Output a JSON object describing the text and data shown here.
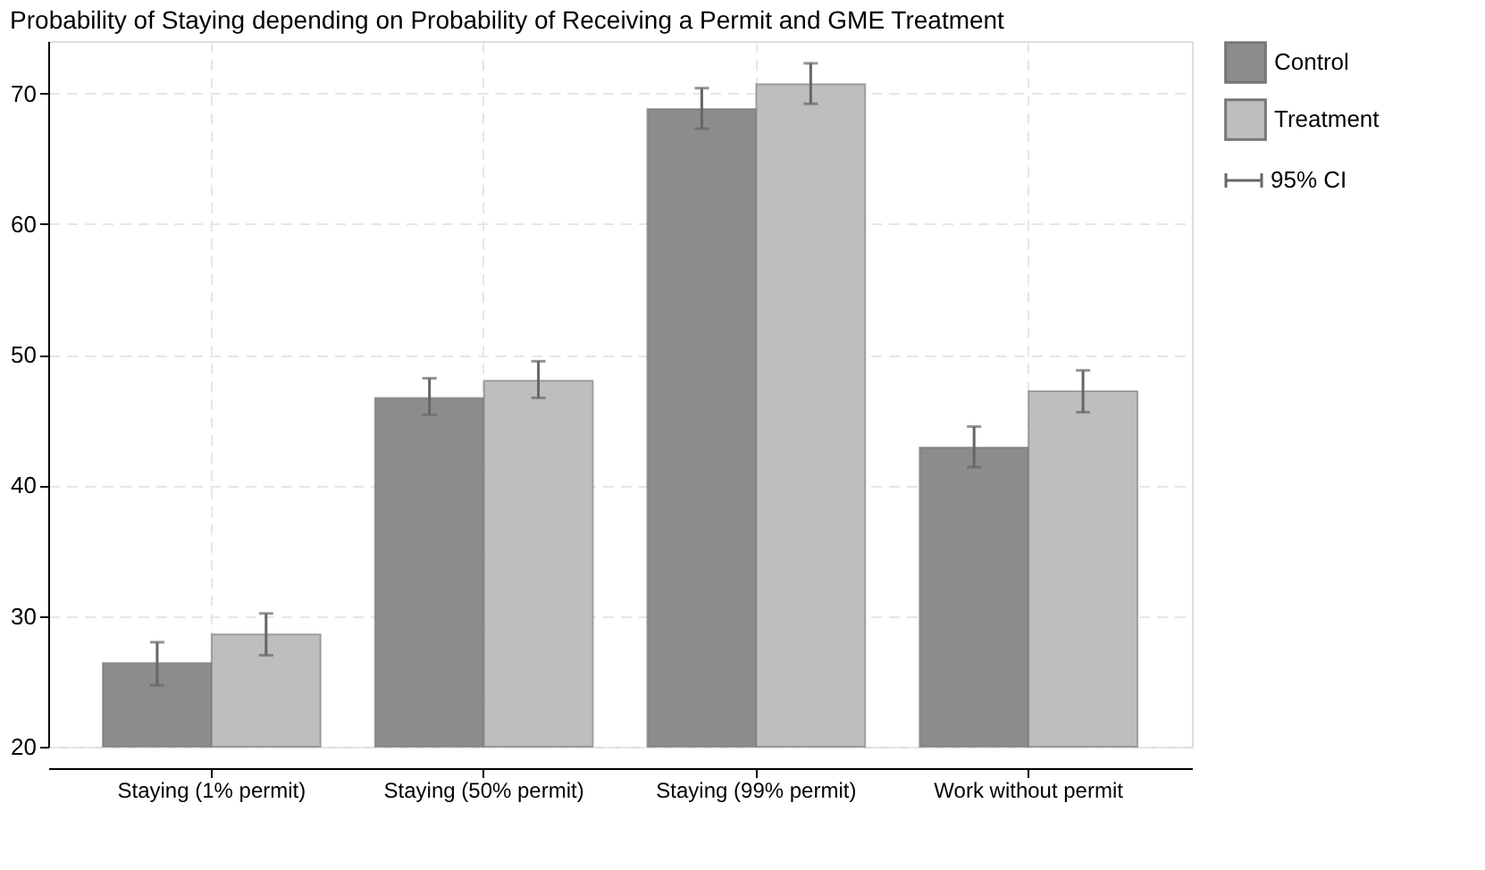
{
  "chart_data": {
    "type": "bar",
    "title": "Probability of Staying depending on Probability of Receiving a Permit and GME Treatment",
    "categories": [
      "Staying (1% permit)",
      "Staying (50% permit)",
      "Staying (99% permit)",
      "Work without permit"
    ],
    "series": [
      {
        "name": "Control",
        "color": "#8c8c8c",
        "values": [
          26.4,
          46.7,
          68.8,
          42.9
        ],
        "errors": [
          [
            24.7,
            28.0
          ],
          [
            45.4,
            48.2
          ],
          [
            67.3,
            70.4
          ],
          [
            41.4,
            44.5
          ]
        ]
      },
      {
        "name": "Treatment",
        "color": "#bebebe",
        "values": [
          28.6,
          48.0,
          70.7,
          47.2
        ],
        "errors": [
          [
            27.0,
            30.2
          ],
          [
            46.7,
            49.5
          ],
          [
            69.2,
            72.3
          ],
          [
            45.6,
            48.8
          ]
        ]
      }
    ],
    "annotations": [
      "95% CI"
    ],
    "ylim": [
      20,
      74
    ],
    "yticks": [
      20,
      30,
      40,
      50,
      60,
      70
    ],
    "grid": true,
    "legend": "right"
  }
}
